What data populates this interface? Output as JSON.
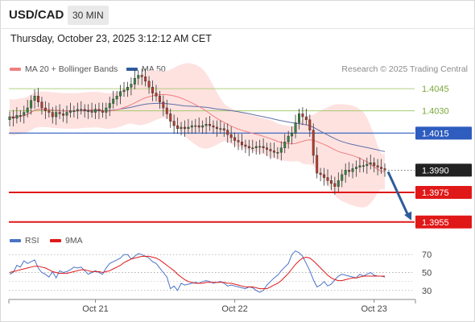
{
  "header": {
    "symbol": "USD/CAD",
    "timeframe": "30 MIN"
  },
  "timestamp": "Thursday, October 23, 2025 3:12:12 AM CET",
  "copyright": "Research © 2025 Trading Central",
  "legend": [
    {
      "label": "MA 20 + Bollinger Bands",
      "color": "#f08080"
    },
    {
      "label": "MA 50",
      "color": "#2e5c9a"
    }
  ],
  "rsi_legend": [
    {
      "label": "RSI",
      "color": "#4a72c8"
    },
    {
      "label": "9MA",
      "color": "#e01818"
    }
  ],
  "colors": {
    "up_candle": "#2f8a3b",
    "down_candle": "#c0392b",
    "bollinger_fill": "#fde0de",
    "ma20": "#f08080",
    "ma50": "#6070a8",
    "resistance": "#9ac45a",
    "pivot": "#2e5cbf",
    "support": "#e01818",
    "last_price_bg": "#222222",
    "arrow": "#2e5c9a"
  },
  "chart_data": [
    {
      "type": "candlestick",
      "title": "",
      "xlabel": "",
      "ylabel": "",
      "ylim": [
        1.395,
        1.4057
      ],
      "x_ticks": [
        "Oct 21",
        "Oct 22",
        "Oct 23"
      ],
      "x_tick_bar_index": [
        24,
        63,
        102
      ],
      "levels": [
        {
          "value": "1.4045",
          "kind": "resistance",
          "style": "thin"
        },
        {
          "value": "1.4030",
          "kind": "resistance",
          "style": "thin"
        },
        {
          "value": "1.4015",
          "kind": "pivot",
          "style": "pivot"
        },
        {
          "value": "1.3990",
          "kind": "last",
          "style": "last"
        },
        {
          "value": "1.3975",
          "kind": "support",
          "style": "thick"
        },
        {
          "value": "1.3955",
          "kind": "support",
          "style": "thick"
        }
      ],
      "forecast_arrow": {
        "from": 1.399,
        "to": 1.3955
      },
      "close": [
        1.4026,
        1.4025,
        1.4027,
        1.4027,
        1.4029,
        1.4032,
        1.4037,
        1.404,
        1.4036,
        1.4032,
        1.403,
        1.4029,
        1.4026,
        1.4029,
        1.4028,
        1.4027,
        1.4029,
        1.403,
        1.403,
        1.4031,
        1.4031,
        1.403,
        1.403,
        1.4029,
        1.4031,
        1.403,
        1.4029,
        1.4032,
        1.4035,
        1.4038,
        1.404,
        1.4043,
        1.4044,
        1.4046,
        1.4048,
        1.4052,
        1.4054,
        1.4053,
        1.405,
        1.4046,
        1.4042,
        1.404,
        1.4036,
        1.4032,
        1.4028,
        1.4023,
        1.402,
        1.4018,
        1.4019,
        1.4018,
        1.4019,
        1.402,
        1.402,
        1.4019,
        1.402,
        1.4021,
        1.402,
        1.4019,
        1.4018,
        1.4018,
        1.4017,
        1.4014,
        1.4012,
        1.401,
        1.4009,
        1.4007,
        1.4006,
        1.4005,
        1.4005,
        1.4006,
        1.4006,
        1.4005,
        1.4004,
        1.4003,
        1.4002,
        1.4002,
        1.4005,
        1.4009,
        1.4013,
        1.4015,
        1.4022,
        1.4028,
        1.4026,
        1.4024,
        1.4017,
        1.4,
        1.3988,
        1.3987,
        1.3985,
        1.3983,
        1.3981,
        1.3979,
        1.3983,
        1.3987,
        1.399,
        1.3989,
        1.3991,
        1.3992,
        1.3993,
        1.3993,
        1.3994,
        1.3995,
        1.3993,
        1.3992,
        1.3991,
        1.399
      ],
      "rsi": [
        48,
        50,
        58,
        56,
        63,
        60,
        62,
        64,
        55,
        50,
        48,
        45,
        51,
        44,
        52,
        50,
        51,
        53,
        56,
        55,
        56,
        52,
        48,
        50,
        52,
        50,
        48,
        55,
        60,
        62,
        64,
        66,
        70,
        70,
        65,
        68,
        71,
        70,
        68,
        66,
        62,
        60,
        55,
        50,
        45,
        32,
        35,
        30,
        38,
        36,
        37,
        38,
        39,
        38,
        40,
        41,
        40,
        38,
        39,
        40,
        38,
        35,
        36,
        35,
        34,
        33,
        32,
        34,
        33,
        30,
        28,
        30,
        36,
        40,
        44,
        47,
        52,
        56,
        60,
        70,
        74,
        72,
        68,
        60,
        52,
        42,
        34,
        36,
        40,
        35,
        37,
        42,
        46,
        48,
        47,
        46,
        45,
        44,
        48,
        46,
        48,
        50,
        47,
        46,
        46,
        45
      ],
      "rsi_ma": [
        50,
        51,
        52,
        53,
        54,
        55,
        56,
        57,
        57,
        56,
        55,
        53,
        51,
        50,
        49,
        49,
        49,
        50,
        51,
        52,
        53,
        53,
        52,
        51,
        51,
        51,
        50,
        51,
        52,
        54,
        56,
        58,
        61,
        63,
        65,
        66,
        67,
        68,
        68,
        68,
        67,
        66,
        64,
        61,
        58,
        55,
        52,
        48,
        45,
        42,
        40,
        39,
        38,
        38,
        38,
        39,
        39,
        39,
        39,
        39,
        39,
        38,
        38,
        37,
        36,
        35,
        34,
        34,
        34,
        33,
        32,
        32,
        32,
        34,
        36,
        38,
        41,
        45,
        49,
        54,
        59,
        63,
        66,
        67,
        66,
        63,
        59,
        55,
        51,
        47,
        44,
        42,
        41,
        41,
        42,
        43,
        44,
        44,
        45,
        46,
        46,
        46,
        46,
        46,
        46,
        46
      ],
      "rsi_ylim": [
        20,
        80
      ],
      "rsi_ticks": [
        "70",
        "50",
        "30"
      ]
    }
  ]
}
